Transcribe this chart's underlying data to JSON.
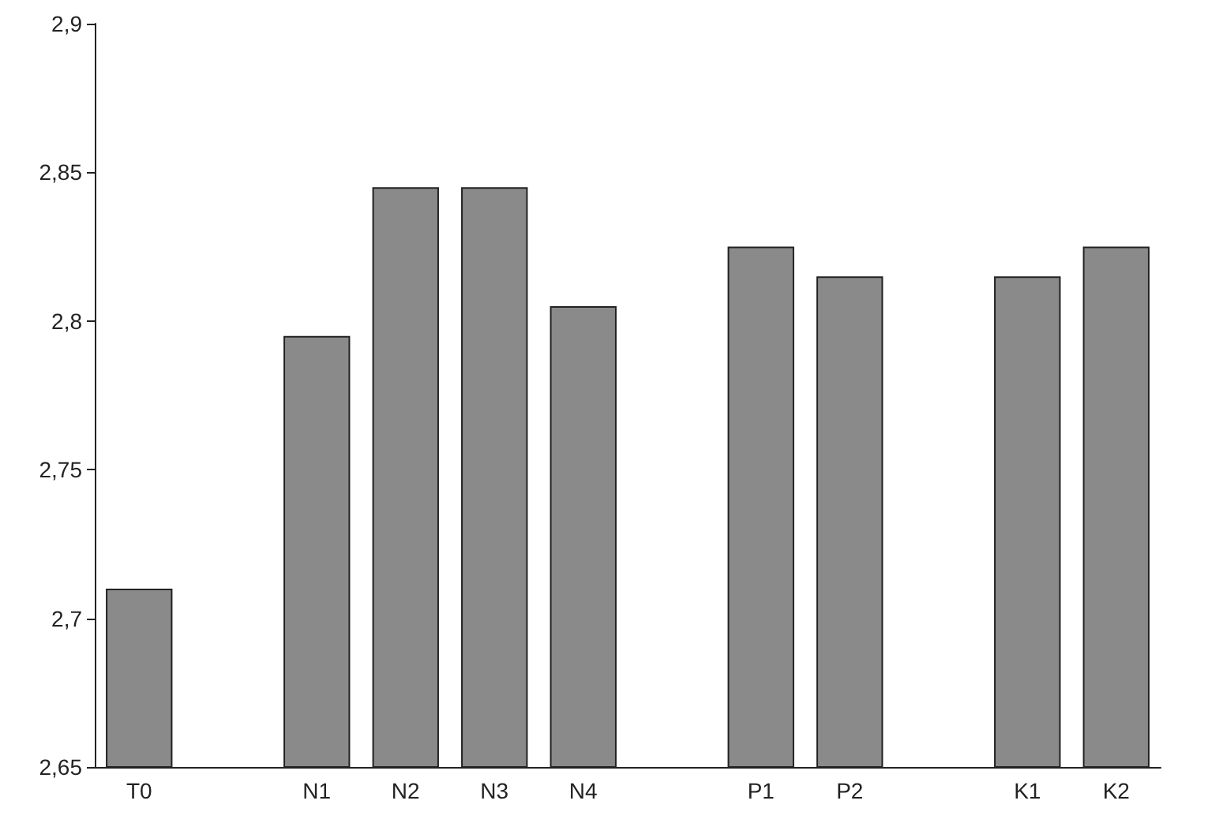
{
  "chart_data": {
    "type": "bar",
    "categories": [
      "T0",
      null,
      "N1",
      "N2",
      "N3",
      "N4",
      null,
      "P1",
      "P2",
      null,
      "K1",
      "K2"
    ],
    "values": [
      2.71,
      null,
      2.795,
      2.845,
      2.845,
      2.805,
      null,
      2.825,
      2.815,
      null,
      2.815,
      2.825
    ],
    "color": "#8a8a8a",
    "ylim": [
      2.65,
      2.9
    ],
    "yticks": [
      {
        "value": 2.65,
        "label": "2,65"
      },
      {
        "value": 2.7,
        "label": "2,7"
      },
      {
        "value": 2.75,
        "label": "2,75"
      },
      {
        "value": 2.8,
        "label": "2,8"
      },
      {
        "value": 2.85,
        "label": "2,85"
      },
      {
        "value": 2.9,
        "label": "2,9"
      }
    ],
    "grid": false
  }
}
